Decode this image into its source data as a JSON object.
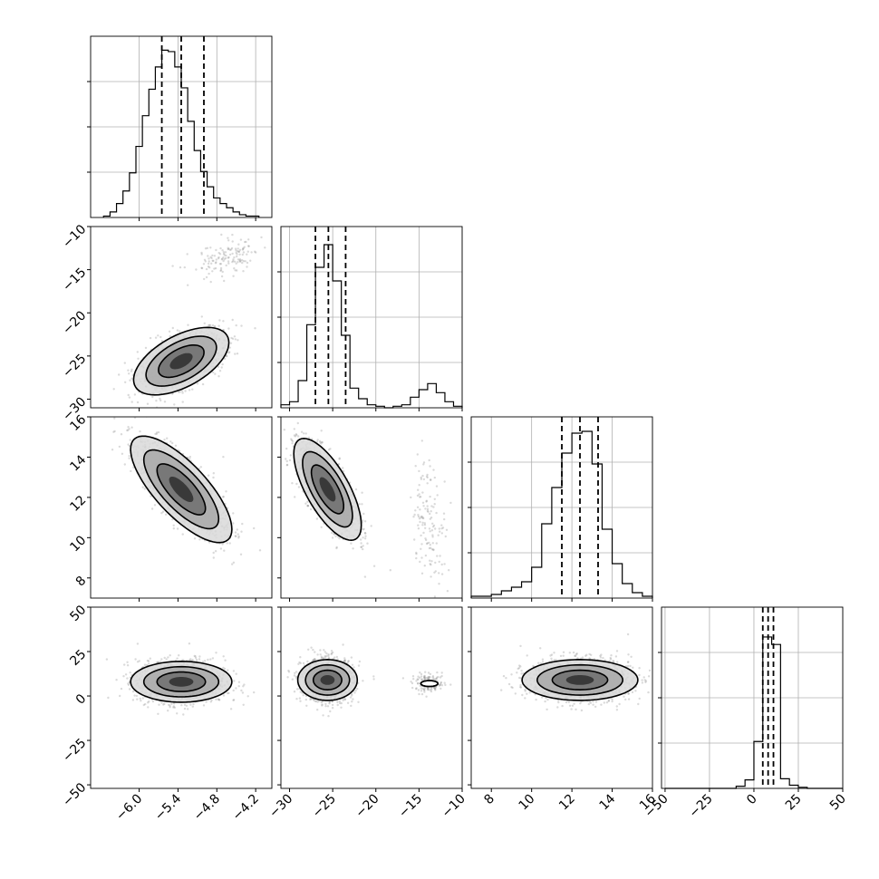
{
  "chart_data": {
    "type": "corner",
    "title": "",
    "parameters": [
      {
        "id": "p1",
        "axis_range": [
          -6.75,
          -3.95
        ],
        "ticks": [
          -6.0,
          -5.4,
          -4.8,
          -4.2
        ],
        "tick_labels": [
          "−6.0",
          "−5.4",
          "−4.8",
          "−4.2"
        ],
        "quantiles_16_50_84": [
          -5.65,
          -5.35,
          -5.0
        ],
        "histogram": {
          "bin_edges": [
            -6.55,
            -6.45,
            -6.35,
            -6.25,
            -6.15,
            -6.05,
            -5.95,
            -5.85,
            -5.75,
            -5.65,
            -5.55,
            -5.45,
            -5.35,
            -5.25,
            -5.15,
            -5.05,
            -4.95,
            -4.85,
            -4.75,
            -4.65,
            -4.55,
            -4.45,
            -4.35,
            -4.25,
            -4.15
          ],
          "counts": [
            1,
            4,
            10,
            19,
            32,
            51,
            73,
            92,
            108,
            120,
            119,
            108,
            93,
            69,
            48,
            33,
            22,
            14,
            10,
            7,
            4,
            2,
            1,
            1
          ],
          "y_max": 130
        }
      },
      {
        "id": "p2",
        "axis_range": [
          -31,
          -10
        ],
        "ticks": [
          -30,
          -25,
          -20,
          -15,
          -10
        ],
        "tick_labels": [
          "−30",
          "−25",
          "−20",
          "−15",
          "−10"
        ],
        "quantiles_16_50_84": [
          -27.0,
          -25.5,
          -23.5
        ],
        "histogram": {
          "bin_edges": [
            -31,
            -30,
            -29,
            -28,
            -27,
            -26,
            -25,
            -24,
            -23,
            -22,
            -21,
            -20,
            -19,
            -18,
            -17,
            -16,
            -15,
            -14,
            -13,
            -12,
            -11,
            -10
          ],
          "counts": [
            2,
            4,
            18,
            55,
            93,
            108,
            84,
            48,
            13,
            6,
            2,
            1,
            0,
            1,
            2,
            7,
            12,
            16,
            10,
            4,
            1
          ],
          "y_max": 120
        }
      },
      {
        "id": "p3",
        "axis_range": [
          7.0,
          16.0
        ],
        "ticks": [
          8,
          10,
          12,
          14,
          16
        ],
        "tick_labels": [
          "8",
          "10",
          "12",
          "14",
          "16"
        ],
        "quantiles_16_50_84": [
          11.5,
          12.4,
          13.3
        ],
        "histogram": {
          "bin_edges": [
            7.0,
            7.5,
            8.0,
            8.5,
            9.0,
            9.5,
            10.0,
            10.5,
            11.0,
            11.5,
            12.0,
            12.5,
            13.0,
            13.5,
            14.0,
            14.5,
            15.0,
            15.5,
            16.0
          ],
          "counts": [
            1,
            1,
            2,
            4,
            6,
            9,
            17,
            41,
            61,
            80,
            91,
            92,
            74,
            38,
            19,
            8,
            3,
            1
          ],
          "y_max": 100
        }
      },
      {
        "id": "p4",
        "axis_range": [
          -52,
          50
        ],
        "ticks": [
          -50,
          -25,
          0,
          25,
          50
        ],
        "tick_labels": [
          "−50",
          "−25",
          "0",
          "25",
          "50"
        ],
        "quantiles_16_50_84": [
          5,
          8,
          11
        ],
        "histogram": {
          "bin_edges": [
            -50,
            -45,
            -40,
            -35,
            -30,
            -25,
            -20,
            -15,
            -10,
            -5,
            0,
            5,
            10,
            15,
            20,
            25,
            30,
            35,
            40,
            45,
            50
          ],
          "counts": [
            0,
            0,
            0,
            0,
            0,
            0,
            0,
            0,
            2,
            8,
            44,
            142,
            135,
            9,
            3,
            1,
            0,
            0,
            0,
            0
          ],
          "y_max": 170
        }
      }
    ],
    "joint_distributions": [
      {
        "x": "p1",
        "y": "p2",
        "components": [
          {
            "mean": [
              -5.35,
              -25.6
            ],
            "sd": [
              0.32,
              1.7
            ],
            "corr": 0.55,
            "weight": 0.9
          },
          {
            "mean": [
              -4.65,
              -13.8
            ],
            "sd": [
              0.28,
              1.2
            ],
            "corr": 0.45,
            "weight": 0.1
          }
        ],
        "contours": [
          {
            "mean": [
              -5.35,
              -25.6
            ],
            "sd": [
              0.32,
              1.7
            ],
            "corr": 0.55,
            "levels": [
              0.55,
              1.1,
              1.7,
              2.3
            ]
          }
        ]
      },
      {
        "x": "p1",
        "y": "p3",
        "components": [
          {
            "mean": [
              -5.35,
              12.4
            ],
            "sd": [
              0.34,
              1.15
            ],
            "corr": -0.75,
            "weight": 1.0
          }
        ],
        "contours": [
          {
            "mean": [
              -5.35,
              12.4
            ],
            "sd": [
              0.34,
              1.15
            ],
            "corr": -0.75,
            "levels": [
              0.55,
              1.1,
              1.7,
              2.3
            ]
          }
        ]
      },
      {
        "x": "p1",
        "y": "p4",
        "components": [
          {
            "mean": [
              -5.35,
              8.0
            ],
            "sd": [
              0.34,
              6.0
            ],
            "corr": 0.0,
            "weight": 1.0
          }
        ],
        "contours": [
          {
            "mean": [
              -5.35,
              8.0
            ],
            "sd": [
              0.34,
              5.0
            ],
            "corr": 0.0,
            "levels": [
              0.55,
              1.1,
              1.7,
              2.3
            ]
          }
        ]
      },
      {
        "x": "p2",
        "y": "p3",
        "components": [
          {
            "mean": [
              -25.6,
              12.4
            ],
            "sd": [
              1.7,
              1.1
            ],
            "corr": -0.7,
            "weight": 0.9
          },
          {
            "mean": [
              -13.8,
              10.8
            ],
            "sd": [
              1.0,
              1.6
            ],
            "corr": -0.3,
            "weight": 0.1
          }
        ],
        "contours": [
          {
            "mean": [
              -25.6,
              12.4
            ],
            "sd": [
              1.7,
              1.1
            ],
            "corr": -0.7,
            "levels": [
              0.55,
              1.1,
              1.7,
              2.3
            ]
          }
        ]
      },
      {
        "x": "p2",
        "y": "p4",
        "components": [
          {
            "mean": [
              -25.6,
              9.0
            ],
            "sd": [
              1.5,
              6.0
            ],
            "corr": 0.0,
            "weight": 0.9
          },
          {
            "mean": [
              -13.8,
              7.0
            ],
            "sd": [
              1.0,
              2.5
            ],
            "corr": 0.0,
            "weight": 0.1
          }
        ],
        "contours": [
          {
            "mean": [
              -25.6,
              9.0
            ],
            "sd": [
              1.5,
              5.0
            ],
            "corr": 0.0,
            "levels": [
              0.55,
              1.1,
              1.7,
              2.3
            ]
          },
          {
            "mean": [
              -13.8,
              7.0
            ],
            "sd": [
              0.9,
              1.5
            ],
            "corr": 0.0,
            "levels": [
              1.1
            ]
          }
        ]
      },
      {
        "x": "p3",
        "y": "p4",
        "components": [
          {
            "mean": [
              12.4,
              9.0
            ],
            "sd": [
              1.25,
              6.0
            ],
            "corr": 0.0,
            "weight": 1.0
          }
        ],
        "contours": [
          {
            "mean": [
              12.4,
              9.0
            ],
            "sd": [
              1.25,
              5.0
            ],
            "corr": 0.0,
            "levels": [
              0.55,
              1.1,
              1.7,
              2.3
            ]
          }
        ]
      }
    ],
    "p2_y_ticks": [
      -30,
      -25,
      -20,
      -15,
      -10
    ],
    "p2_y_tick_labels": [
      "−30",
      "−25",
      "−20",
      "−15",
      "−10"
    ],
    "p3_y_ticks": [
      8,
      10,
      12,
      14,
      16
    ],
    "p3_y_tick_labels": [
      "8",
      "10",
      "12",
      "14",
      "16"
    ],
    "p4_y_ticks": [
      -50,
      -25,
      0,
      25,
      50
    ],
    "p4_y_tick_labels": [
      "−50",
      "−25",
      "0",
      "25",
      "50"
    ],
    "grid": true,
    "legend": "none"
  }
}
